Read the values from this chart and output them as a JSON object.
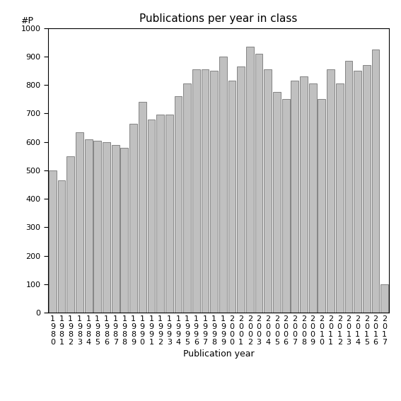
{
  "title": "Publications per year in class",
  "xlabel": "Publication year",
  "ylabel": "#P",
  "years": [
    "1980",
    "1981",
    "1982",
    "1983",
    "1984",
    "1985",
    "1986",
    "1987",
    "1988",
    "1989",
    "1990",
    "1991",
    "1992",
    "1993",
    "1994",
    "1995",
    "1996",
    "1997",
    "1998",
    "1999",
    "2000",
    "2001",
    "2002",
    "2003",
    "2004",
    "2005",
    "2006",
    "2007",
    "2008",
    "2009",
    "2010",
    "2011",
    "2012",
    "2013",
    "2014",
    "2015",
    "2016",
    "2017"
  ],
  "values": [
    500,
    465,
    550,
    635,
    610,
    605,
    600,
    590,
    580,
    665,
    740,
    680,
    695,
    695,
    760,
    805,
    855,
    855,
    850,
    900,
    815,
    865,
    935,
    910,
    855,
    775,
    750,
    815,
    830,
    805,
    750,
    855,
    805,
    885,
    850,
    870,
    925,
    100
  ],
  "bar_color": "#c0c0c0",
  "bar_edgecolor": "#606060",
  "ylim": [
    0,
    1000
  ],
  "yticks": [
    0,
    100,
    200,
    300,
    400,
    500,
    600,
    700,
    800,
    900,
    1000
  ],
  "background_color": "#ffffff",
  "title_fontsize": 11,
  "axis_label_fontsize": 9,
  "tick_fontsize": 8,
  "ylabel_fontsize": 9
}
